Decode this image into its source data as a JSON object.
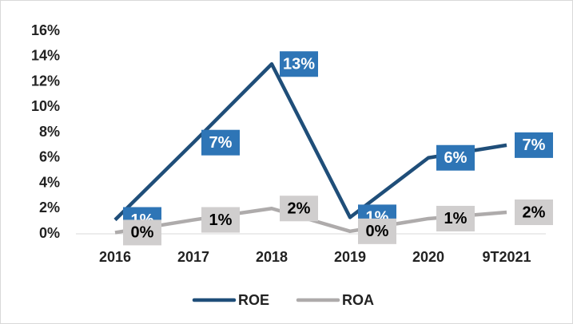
{
  "chart_data": {
    "type": "line",
    "categories": [
      "2016",
      "2017",
      "2018",
      "2019",
      "2020",
      "9T2021"
    ],
    "series": [
      {
        "name": "ROE",
        "color": "#1f4e79",
        "label_color": "#2e75b6",
        "label_text_color": "#ffffff",
        "values": [
          1.1,
          7.2,
          13.4,
          1.3,
          6.0,
          7.0
        ],
        "value_labels": [
          "1%",
          "7%",
          "13%",
          "1%",
          "6%",
          "7%"
        ]
      },
      {
        "name": "ROA",
        "color": "#aeabab",
        "label_color": "#d0cece",
        "label_text_color": "#000000",
        "values": [
          0.1,
          1.1,
          2.0,
          0.2,
          1.2,
          1.7
        ],
        "value_labels": [
          "0%",
          "1%",
          "2%",
          "0%",
          "1%",
          "2%"
        ]
      }
    ],
    "ylim": [
      0,
      16
    ],
    "yticks": [
      {
        "value": 0,
        "label": "0%"
      },
      {
        "value": 2,
        "label": "2%"
      },
      {
        "value": 4,
        "label": "4%"
      },
      {
        "value": 6,
        "label": "6%"
      },
      {
        "value": 8,
        "label": "8%"
      },
      {
        "value": 10,
        "label": "10%"
      },
      {
        "value": 12,
        "label": "12%"
      },
      {
        "value": 14,
        "label": "14%"
      },
      {
        "value": 16,
        "label": "16%"
      }
    ],
    "grid": false,
    "legend": "bottom"
  }
}
